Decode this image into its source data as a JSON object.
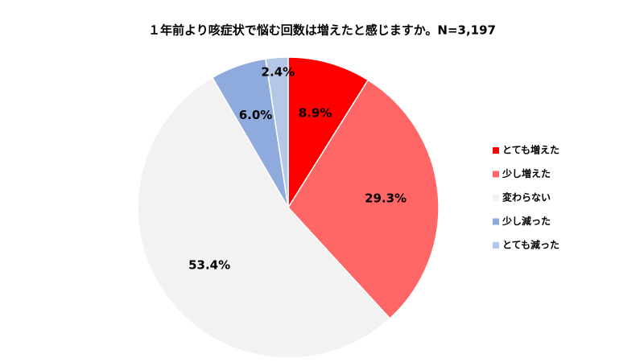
{
  "chart_data": {
    "type": "pie",
    "title": "１年前より咳症状で悩む回数は増えたと感じますか。N=3,197",
    "categories": [
      "とても増えた",
      "少し増えた",
      "変わらない",
      "少し減った",
      "とても減った"
    ],
    "values": [
      8.9,
      29.3,
      53.4,
      6.0,
      2.4
    ],
    "value_labels": [
      "8.9%",
      "29.3%",
      "53.4%",
      "6.0%",
      "2.4%"
    ],
    "colors": [
      "#ff0000",
      "#ff6666",
      "#f2f2f2",
      "#8faadc",
      "#b4c7e7"
    ],
    "legend": "right"
  }
}
